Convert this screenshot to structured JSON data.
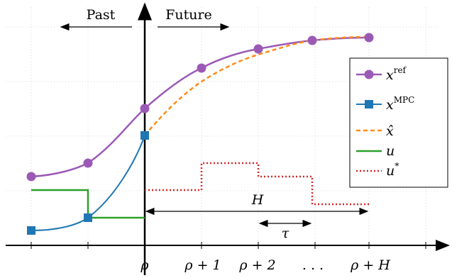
{
  "labels": {
    "past": "Past",
    "future": "Future",
    "horizon": "H",
    "tau": "τ"
  },
  "ticks": [
    "ρ",
    "ρ + 1",
    "ρ + 2",
    ". . .",
    "ρ + H"
  ],
  "legend": [
    {
      "symbol": "x",
      "sup": "ref",
      "color": "#9b59b6",
      "style": "line-circle"
    },
    {
      "symbol": "x",
      "sup": "MPC",
      "color": "#1f77b4",
      "style": "line-square"
    },
    {
      "symbol": "x̂",
      "sup": "",
      "color": "#ff8c1a",
      "style": "dashed"
    },
    {
      "symbol": "u",
      "sup": "",
      "color": "#2ca02c",
      "style": "solid"
    },
    {
      "symbol": "u",
      "sup": "*",
      "color": "#d62728",
      "style": "dotted"
    }
  ],
  "colors": {
    "ref": "#9b59b6",
    "mpc": "#1f77b4",
    "xhat": "#ff8c1a",
    "u": "#2ca02c",
    "ustar": "#d62728",
    "axis": "#000000",
    "grid": "#d8d8d8"
  }
}
